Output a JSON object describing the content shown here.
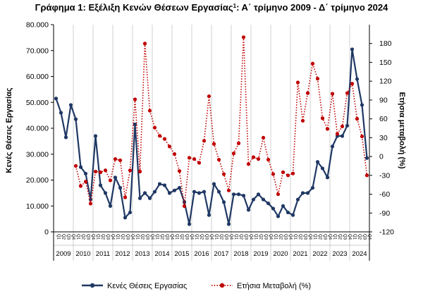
{
  "chart_data": {
    "type": "line",
    "title": "Γράφημα 1: Εξέλιξη Κενών Θέσεων Εργασίας",
    "title_sup": "1",
    "title_suffix": ": Α΄ τρίμηνο 2009 - Δ΄ τρίμηνο 2024",
    "ylabel": "Κενές Θέσεις Εργασίας",
    "y2label": "Ετήσια μεταβολή (%)",
    "ylim": [
      0,
      80000
    ],
    "y2lim": [
      -120,
      210
    ],
    "y_ticks": [
      "0",
      "10.000",
      "20.000",
      "30.000",
      "40.000",
      "50.000",
      "60.000",
      "70.000",
      "80.000"
    ],
    "y2_ticks": [
      "-120",
      "-90",
      "-60",
      "-30",
      "0",
      "30",
      "60",
      "90",
      "120",
      "150",
      "180"
    ],
    "quarter_labels": [
      "Q1",
      "Q2",
      "Q3",
      "Q4"
    ],
    "years": [
      "2009",
      "2010",
      "2011",
      "2012",
      "2013",
      "2014",
      "2015",
      "2016",
      "2017",
      "2018",
      "2019",
      "2020",
      "2021",
      "2022",
      "2023",
      "2024"
    ],
    "grid": "vertical-year-lines",
    "legend_position": "bottom",
    "series": [
      {
        "name": "Κενές Θέσεις Εργασίας",
        "axis": "left",
        "style": "solid",
        "color": "#1f3864",
        "values": [
          51500,
          46000,
          36500,
          49000,
          43500,
          25000,
          22500,
          12500,
          37000,
          18000,
          15000,
          10000,
          21000,
          17000,
          5500,
          7500,
          41500,
          13000,
          15000,
          13000,
          15500,
          18500,
          18000,
          15000,
          16000,
          17000,
          11500,
          3000,
          15500,
          15000,
          15500,
          6500,
          18500,
          15500,
          11500,
          3000,
          14500,
          14500,
          14000,
          8500,
          12500,
          14500,
          12500,
          11000,
          9000,
          6000,
          10000,
          7500,
          6500,
          12500,
          15000,
          15000,
          17000,
          27000,
          24500,
          21000,
          33000,
          37000,
          37000,
          41000,
          70500,
          59000,
          49000,
          28500
        ]
      },
      {
        "name": "Ετήσια Μεταβολή (%)",
        "axis": "right",
        "style": "dotted",
        "color": "#c00000",
        "values": [
          null,
          null,
          null,
          null,
          -15,
          -47,
          -40,
          -75,
          -24,
          -25,
          -22,
          -38,
          -4,
          -6,
          -65,
          -22,
          91,
          -24,
          180,
          73,
          46,
          33,
          28,
          16,
          4,
          -23,
          -79,
          -2,
          -4,
          -10,
          25,
          96,
          20,
          -5,
          -28,
          -54,
          5,
          21,
          190,
          -12,
          -1,
          -4,
          30,
          -5,
          -28,
          -60,
          -25,
          -30,
          -27,
          118,
          57,
          101,
          148,
          124,
          61,
          44,
          100,
          36,
          48,
          101,
          116,
          60,
          32,
          -30
        ]
      }
    ]
  }
}
